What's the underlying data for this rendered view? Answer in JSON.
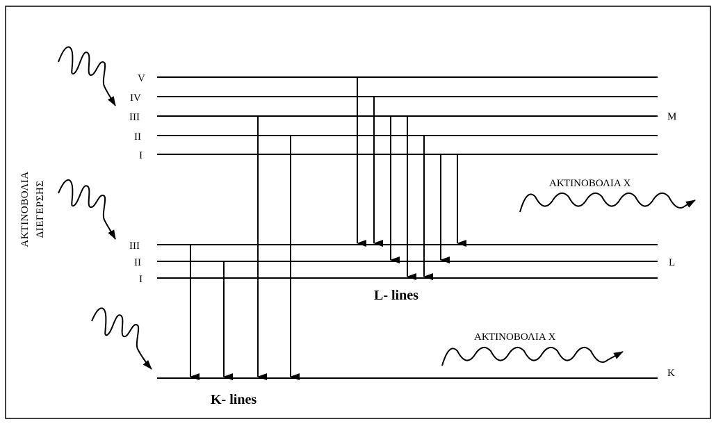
{
  "diagram": {
    "shells": {
      "M": {
        "name": "M",
        "sublevels": [
          "V",
          "IV",
          "III",
          "II",
          "I"
        ]
      },
      "L": {
        "name": "L",
        "sublevels": [
          "III",
          "II",
          "I"
        ]
      },
      "K": {
        "name": "K"
      }
    },
    "excitation_label_line1": "ΑΚΤΙΝΟΒΟΛΙΑ",
    "excitation_label_line2": "ΔΙΕΓΕΡΣΗΣ",
    "xray_label_upper": "ΑΚΤΙΝΟΒΟΛΙΑ Χ",
    "xray_label_lower": "ΑΚΤΙΝΟΒΟΛΙΑ Χ",
    "l_lines_label": "L- lines",
    "k_lines_label": "K- lines"
  }
}
